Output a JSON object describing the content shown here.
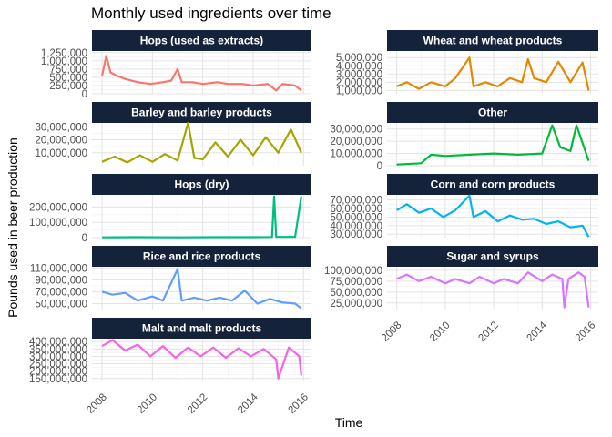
{
  "chart_data": {
    "type": "line",
    "title": "Monthly used ingredients over time",
    "xlabel": "Time",
    "ylabel": "Pounds used in beer production",
    "x_range": [
      "2008-01",
      "2015-12"
    ],
    "x_ticks": [
      "2008",
      "2010",
      "2012",
      "2014",
      "2016"
    ],
    "grid": true,
    "legend": "none",
    "facets_scale": "free_y",
    "panels": [
      {
        "name": "Hops (used as extracts)",
        "color": "#F8766D",
        "ylim": [
          0,
          1300000
        ],
        "y_ticks": [
          0,
          250000,
          500000,
          750000,
          1000000,
          1250000
        ],
        "y_tick_labels": [
          "0",
          "250,000",
          "500,000",
          "750,000",
          "1,000,000",
          "1,250,000"
        ],
        "points": [
          [
            "2008-01",
            550000
          ],
          [
            "2008-03",
            1150000
          ],
          [
            "2008-05",
            650000
          ],
          [
            "2008-08",
            550000
          ],
          [
            "2008-12",
            450000
          ],
          [
            "2009-06",
            350000
          ],
          [
            "2009-12",
            300000
          ],
          [
            "2010-06",
            350000
          ],
          [
            "2010-10",
            400000
          ],
          [
            "2011-01",
            750000
          ],
          [
            "2011-03",
            350000
          ],
          [
            "2011-08",
            350000
          ],
          [
            "2012-01",
            300000
          ],
          [
            "2012-08",
            350000
          ],
          [
            "2013-01",
            300000
          ],
          [
            "2013-08",
            300000
          ],
          [
            "2014-01",
            250000
          ],
          [
            "2014-08",
            300000
          ],
          [
            "2014-12",
            100000
          ],
          [
            "2015-03",
            300000
          ],
          [
            "2015-09",
            250000
          ],
          [
            "2015-12",
            100000
          ]
        ]
      },
      {
        "name": "Barley and barley products",
        "color": "#A3A500",
        "ylim": [
          0,
          33000000
        ],
        "y_ticks": [
          10000000,
          20000000,
          30000000
        ],
        "y_tick_labels": [
          "10,000,000",
          "20,000,000",
          "30,000,000"
        ],
        "points": [
          [
            "2008-01",
            3000000
          ],
          [
            "2008-07",
            7000000
          ],
          [
            "2009-01",
            2500000
          ],
          [
            "2009-07",
            8000000
          ],
          [
            "2010-01",
            3000000
          ],
          [
            "2010-07",
            9000000
          ],
          [
            "2011-01",
            4000000
          ],
          [
            "2011-06",
            33000000
          ],
          [
            "2011-09",
            6000000
          ],
          [
            "2012-01",
            5000000
          ],
          [
            "2012-07",
            18000000
          ],
          [
            "2013-01",
            7000000
          ],
          [
            "2013-07",
            20000000
          ],
          [
            "2014-01",
            8000000
          ],
          [
            "2014-07",
            22000000
          ],
          [
            "2015-01",
            10000000
          ],
          [
            "2015-07",
            28000000
          ],
          [
            "2015-12",
            10000000
          ]
        ]
      },
      {
        "name": "Hops (dry)",
        "color": "#00BF7D",
        "ylim": [
          0,
          280000000
        ],
        "y_ticks": [
          0,
          100000000,
          200000000
        ],
        "y_tick_labels": [
          "0",
          "100,000,000",
          "200,000,000"
        ],
        "points": [
          [
            "2008-01",
            2000000
          ],
          [
            "2009-06",
            3000000
          ],
          [
            "2011-01",
            2000000
          ],
          [
            "2012-06",
            3000000
          ],
          [
            "2014-01",
            3000000
          ],
          [
            "2014-10",
            4000000
          ],
          [
            "2014-11",
            270000000
          ],
          [
            "2014-12",
            5000000
          ],
          [
            "2015-09",
            5000000
          ],
          [
            "2015-12",
            270000000
          ]
        ]
      },
      {
        "name": "Rice and rice products",
        "color": "#619CFF",
        "ylim": [
          40000000,
          112000000
        ],
        "y_ticks": [
          50000000,
          70000000,
          90000000,
          110000000
        ],
        "y_tick_labels": [
          "50,000,000",
          "70,000,000",
          "90,000,000",
          "110,000,000"
        ],
        "points": [
          [
            "2008-01",
            70000000
          ],
          [
            "2008-06",
            65000000
          ],
          [
            "2008-12",
            68000000
          ],
          [
            "2009-06",
            55000000
          ],
          [
            "2010-01",
            62000000
          ],
          [
            "2010-06",
            55000000
          ],
          [
            "2011-01",
            108000000
          ],
          [
            "2011-03",
            55000000
          ],
          [
            "2011-09",
            60000000
          ],
          [
            "2012-03",
            55000000
          ],
          [
            "2012-09",
            60000000
          ],
          [
            "2013-03",
            55000000
          ],
          [
            "2013-09",
            72000000
          ],
          [
            "2014-03",
            50000000
          ],
          [
            "2014-09",
            58000000
          ],
          [
            "2015-03",
            52000000
          ],
          [
            "2015-09",
            50000000
          ],
          [
            "2015-12",
            42000000
          ]
        ]
      },
      {
        "name": "Malt and malt products",
        "color": "#F564E3",
        "ylim": [
          130000000,
          420000000
        ],
        "y_ticks": [
          150000000,
          200000000,
          250000000,
          300000000,
          350000000,
          400000000
        ],
        "y_tick_labels": [
          "150,000,000",
          "200,000,000",
          "250,000,000",
          "300,000,000",
          "350,000,000",
          "400,000,000"
        ],
        "points": [
          [
            "2008-01",
            370000000
          ],
          [
            "2008-06",
            410000000
          ],
          [
            "2008-12",
            340000000
          ],
          [
            "2009-06",
            380000000
          ],
          [
            "2009-12",
            300000000
          ],
          [
            "2010-06",
            370000000
          ],
          [
            "2010-12",
            290000000
          ],
          [
            "2011-06",
            360000000
          ],
          [
            "2011-12",
            300000000
          ],
          [
            "2012-06",
            360000000
          ],
          [
            "2012-12",
            290000000
          ],
          [
            "2013-06",
            355000000
          ],
          [
            "2013-12",
            300000000
          ],
          [
            "2014-06",
            350000000
          ],
          [
            "2014-12",
            280000000
          ],
          [
            "2015-01",
            150000000
          ],
          [
            "2015-06",
            360000000
          ],
          [
            "2015-11",
            300000000
          ],
          [
            "2015-12",
            170000000
          ]
        ]
      },
      {
        "name": "Wheat and wheat products",
        "color": "#E38900",
        "ylim": [
          600000,
          5800000
        ],
        "y_ticks": [
          1000000,
          2000000,
          3000000,
          4000000,
          5000000
        ],
        "y_tick_labels": [
          "1,000,000",
          "2,000,000",
          "3,000,000",
          "4,000,000",
          "5,000,000"
        ],
        "points": [
          [
            "2008-01",
            1500000
          ],
          [
            "2008-06",
            2000000
          ],
          [
            "2008-12",
            1200000
          ],
          [
            "2009-06",
            2000000
          ],
          [
            "2010-01",
            1500000
          ],
          [
            "2010-06",
            2500000
          ],
          [
            "2011-01",
            5000000
          ],
          [
            "2011-03",
            1500000
          ],
          [
            "2011-09",
            2000000
          ],
          [
            "2012-03",
            1500000
          ],
          [
            "2012-09",
            2500000
          ],
          [
            "2013-03",
            2000000
          ],
          [
            "2013-06",
            4800000
          ],
          [
            "2013-09",
            2500000
          ],
          [
            "2014-03",
            2000000
          ],
          [
            "2014-09",
            4500000
          ],
          [
            "2015-03",
            2000000
          ],
          [
            "2015-09",
            4400000
          ],
          [
            "2015-12",
            1000000
          ]
        ]
      },
      {
        "name": "Other",
        "color": "#00BA38",
        "ylim": [
          0,
          35000000
        ],
        "y_ticks": [
          0,
          10000000,
          20000000,
          30000000
        ],
        "y_tick_labels": [
          "0",
          "10,000,000",
          "20,000,000",
          "30,000,000"
        ],
        "points": [
          [
            "2008-01",
            1000000
          ],
          [
            "2009-01",
            2000000
          ],
          [
            "2009-06",
            9000000
          ],
          [
            "2010-01",
            8000000
          ],
          [
            "2011-01",
            9000000
          ],
          [
            "2012-01",
            10000000
          ],
          [
            "2013-01",
            9000000
          ],
          [
            "2014-01",
            10000000
          ],
          [
            "2014-06",
            33000000
          ],
          [
            "2014-10",
            15000000
          ],
          [
            "2015-03",
            12000000
          ],
          [
            "2015-06",
            33000000
          ],
          [
            "2015-12",
            4000000
          ]
        ]
      },
      {
        "name": "Corn and corn products",
        "color": "#00B4EF",
        "ylim": [
          26000000,
          76000000
        ],
        "y_ticks": [
          30000000,
          40000000,
          50000000,
          60000000,
          70000000
        ],
        "y_tick_labels": [
          "30,000,000",
          "40,000,000",
          "50,000,000",
          "60,000,000",
          "70,000,000"
        ],
        "points": [
          [
            "2008-01",
            58000000
          ],
          [
            "2008-06",
            65000000
          ],
          [
            "2008-12",
            55000000
          ],
          [
            "2009-06",
            60000000
          ],
          [
            "2009-12",
            50000000
          ],
          [
            "2010-06",
            58000000
          ],
          [
            "2011-01",
            75000000
          ],
          [
            "2011-03",
            50000000
          ],
          [
            "2011-09",
            57000000
          ],
          [
            "2012-03",
            45000000
          ],
          [
            "2012-09",
            52000000
          ],
          [
            "2013-03",
            47000000
          ],
          [
            "2013-09",
            48000000
          ],
          [
            "2014-03",
            42000000
          ],
          [
            "2014-09",
            45000000
          ],
          [
            "2015-03",
            38000000
          ],
          [
            "2015-09",
            40000000
          ],
          [
            "2015-12",
            27000000
          ]
        ]
      },
      {
        "name": "Sugar and syrups",
        "color": "#D874FF",
        "ylim": [
          10000000,
          108000000
        ],
        "y_ticks": [
          25000000,
          50000000,
          75000000,
          100000000
        ],
        "y_tick_labels": [
          "25,000,000",
          "50,000,000",
          "75,000,000",
          "100,000,000"
        ],
        "points": [
          [
            "2008-01",
            80000000
          ],
          [
            "2008-06",
            90000000
          ],
          [
            "2008-12",
            75000000
          ],
          [
            "2009-06",
            85000000
          ],
          [
            "2010-01",
            70000000
          ],
          [
            "2010-06",
            80000000
          ],
          [
            "2011-01",
            70000000
          ],
          [
            "2011-06",
            85000000
          ],
          [
            "2012-01",
            70000000
          ],
          [
            "2012-06",
            80000000
          ],
          [
            "2013-01",
            70000000
          ],
          [
            "2013-06",
            95000000
          ],
          [
            "2014-01",
            75000000
          ],
          [
            "2014-06",
            90000000
          ],
          [
            "2014-11",
            80000000
          ],
          [
            "2014-12",
            15000000
          ],
          [
            "2015-02",
            80000000
          ],
          [
            "2015-07",
            95000000
          ],
          [
            "2015-10",
            85000000
          ],
          [
            "2015-12",
            15000000
          ]
        ]
      }
    ]
  }
}
